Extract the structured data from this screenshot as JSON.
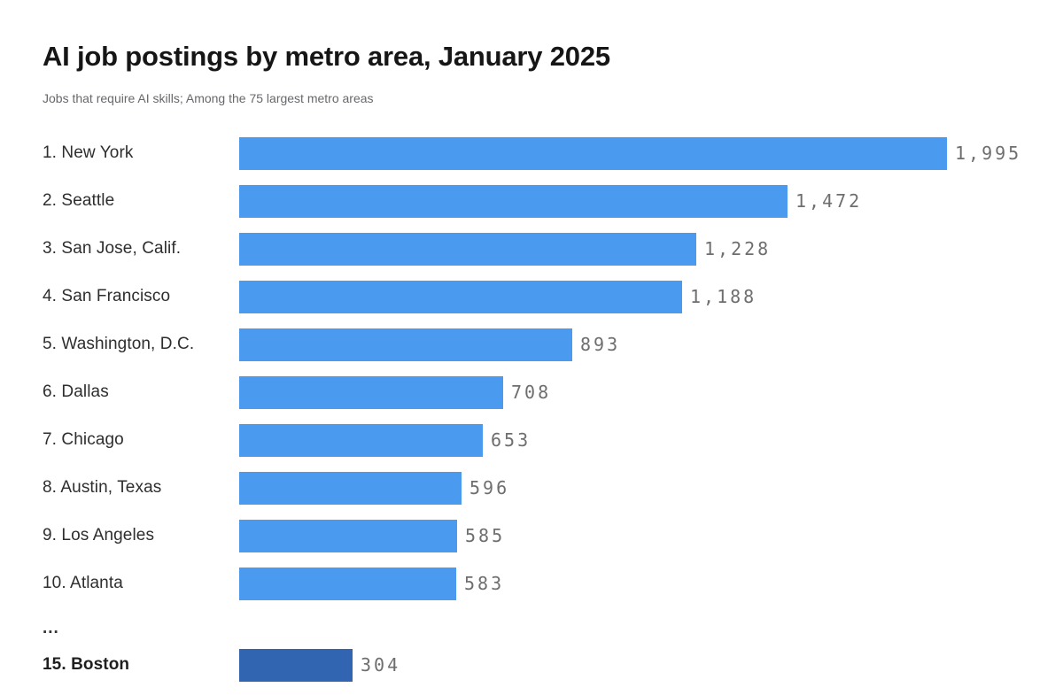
{
  "chart_data": {
    "type": "bar",
    "orientation": "horizontal",
    "title": "AI job postings by metro area, January 2025",
    "subtitle": "Jobs that require AI skills; Among the 75 largest metro areas",
    "xlabel": "",
    "ylabel": "",
    "xlim": [
      0,
      1900
    ],
    "grid": false,
    "legend": "none",
    "value_labels": "outside-end",
    "colors": {
      "bar": "#4A9AF0",
      "highlight_bar": "#3164B1",
      "value_text": "#6E6E6E",
      "title_text": "#161616",
      "subtitle_text": "#66686B"
    },
    "rows": [
      {
        "rank": 1,
        "label": "1. New York",
        "value": 1995,
        "display": "1,995",
        "highlight": false
      },
      {
        "rank": 2,
        "label": "2. Seattle",
        "value": 1472,
        "display": "1,472",
        "highlight": false
      },
      {
        "rank": 3,
        "label": "3. San Jose, Calif.",
        "value": 1228,
        "display": "1,228",
        "highlight": false
      },
      {
        "rank": 4,
        "label": "4. San Francisco",
        "value": 1188,
        "display": "1,188",
        "highlight": false
      },
      {
        "rank": 5,
        "label": "5. Washington, D.C.",
        "value": 893,
        "display": "893",
        "highlight": false
      },
      {
        "rank": 6,
        "label": "6. Dallas",
        "value": 708,
        "display": "708",
        "highlight": false
      },
      {
        "rank": 7,
        "label": "7. Chicago",
        "value": 653,
        "display": "653",
        "highlight": false
      },
      {
        "rank": 8,
        "label": "8. Austin, Texas",
        "value": 596,
        "display": "596",
        "highlight": false
      },
      {
        "rank": 9,
        "label": "9. Los Angeles",
        "value": 585,
        "display": "585",
        "highlight": false
      },
      {
        "rank": 10,
        "label": "10. Atlanta",
        "value": 583,
        "display": "583",
        "highlight": false
      },
      {
        "gap": true,
        "label": "..."
      },
      {
        "rank": 15,
        "label": "15. Boston",
        "value": 304,
        "display": "304",
        "highlight": true
      }
    ]
  }
}
